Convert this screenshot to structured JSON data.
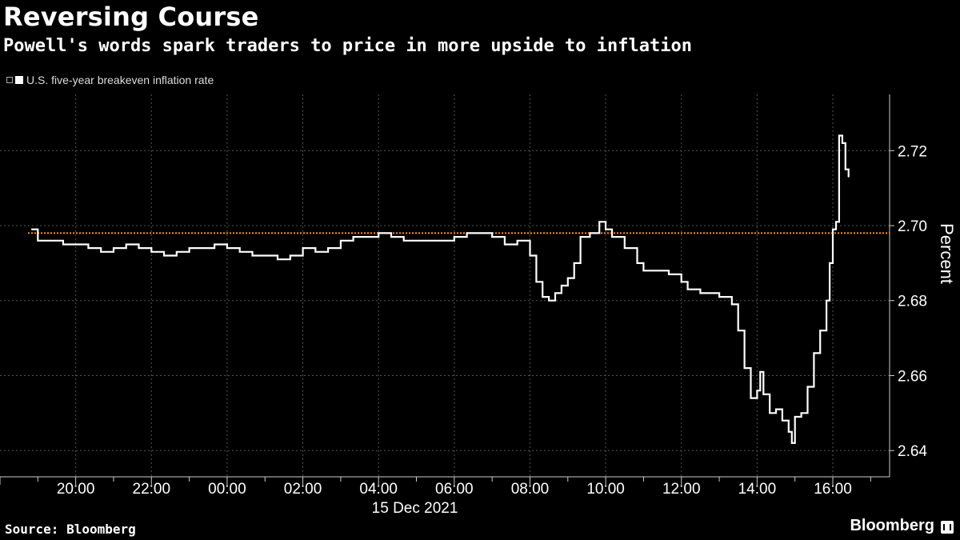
{
  "chart_data": {
    "type": "line",
    "title": "Reversing Course",
    "subtitle": "Powell's words spark traders to price in more upside to inflation",
    "series": [
      {
        "name": "U.S. five-year breakeven inflation rate",
        "color": "#ffffff",
        "points": [
          [
            "18:50",
            2.699
          ],
          [
            "19:00",
            2.696
          ],
          [
            "19:20",
            2.696
          ],
          [
            "19:40",
            2.695
          ],
          [
            "20:00",
            2.695
          ],
          [
            "20:20",
            2.694
          ],
          [
            "20:40",
            2.693
          ],
          [
            "21:00",
            2.694
          ],
          [
            "21:20",
            2.695
          ],
          [
            "21:40",
            2.694
          ],
          [
            "22:00",
            2.693
          ],
          [
            "22:20",
            2.692
          ],
          [
            "22:40",
            2.693
          ],
          [
            "23:00",
            2.694
          ],
          [
            "23:20",
            2.694
          ],
          [
            "23:40",
            2.695
          ],
          [
            "00:00",
            2.694
          ],
          [
            "00:20",
            2.693
          ],
          [
            "00:40",
            2.692
          ],
          [
            "01:00",
            2.692
          ],
          [
            "01:20",
            2.691
          ],
          [
            "01:40",
            2.692
          ],
          [
            "02:00",
            2.694
          ],
          [
            "02:20",
            2.693
          ],
          [
            "02:40",
            2.694
          ],
          [
            "03:00",
            2.696
          ],
          [
            "03:20",
            2.697
          ],
          [
            "03:40",
            2.697
          ],
          [
            "04:00",
            2.698
          ],
          [
            "04:20",
            2.697
          ],
          [
            "04:40",
            2.696
          ],
          [
            "05:00",
            2.696
          ],
          [
            "05:20",
            2.696
          ],
          [
            "05:40",
            2.696
          ],
          [
            "06:00",
            2.697
          ],
          [
            "06:20",
            2.698
          ],
          [
            "06:40",
            2.698
          ],
          [
            "07:00",
            2.697
          ],
          [
            "07:20",
            2.695
          ],
          [
            "07:40",
            2.696
          ],
          [
            "08:00",
            2.692
          ],
          [
            "08:10",
            2.685
          ],
          [
            "08:20",
            2.681
          ],
          [
            "08:30",
            2.68
          ],
          [
            "08:40",
            2.682
          ],
          [
            "08:50",
            2.684
          ],
          [
            "09:00",
            2.686
          ],
          [
            "09:10",
            2.69
          ],
          [
            "09:20",
            2.697
          ],
          [
            "09:35",
            2.698
          ],
          [
            "09:50",
            2.701
          ],
          [
            "10:00",
            2.699
          ],
          [
            "10:10",
            2.697
          ],
          [
            "10:30",
            2.694
          ],
          [
            "10:50",
            2.69
          ],
          [
            "11:00",
            2.688
          ],
          [
            "11:20",
            2.688
          ],
          [
            "11:40",
            2.687
          ],
          [
            "12:00",
            2.685
          ],
          [
            "12:10",
            2.683
          ],
          [
            "12:30",
            2.682
          ],
          [
            "13:00",
            2.681
          ],
          [
            "13:20",
            2.679
          ],
          [
            "13:30",
            2.672
          ],
          [
            "13:40",
            2.662
          ],
          [
            "13:50",
            2.654
          ],
          [
            "14:00",
            2.656
          ],
          [
            "14:05",
            2.661
          ],
          [
            "14:10",
            2.655
          ],
          [
            "14:20",
            2.65
          ],
          [
            "14:30",
            2.651
          ],
          [
            "14:40",
            2.648
          ],
          [
            "14:50",
            2.645
          ],
          [
            "14:55",
            2.642
          ],
          [
            "15:00",
            2.649
          ],
          [
            "15:10",
            2.65
          ],
          [
            "15:20",
            2.657
          ],
          [
            "15:30",
            2.666
          ],
          [
            "15:40",
            2.672
          ],
          [
            "15:50",
            2.68
          ],
          [
            "15:55",
            2.69
          ],
          [
            "16:00",
            2.699
          ],
          [
            "16:05",
            2.701
          ],
          [
            "16:10",
            2.724
          ],
          [
            "16:15",
            2.722
          ],
          [
            "16:20",
            2.715
          ],
          [
            "16:25",
            2.713
          ]
        ]
      }
    ],
    "reference_line": {
      "y": 2.698,
      "color": "#ff8c1a",
      "style": "dotted"
    },
    "x_ticks": [
      "20:00",
      "22:00",
      "00:00",
      "02:00",
      "04:00",
      "06:00",
      "08:00",
      "10:00",
      "12:00",
      "14:00",
      "16:00"
    ],
    "x_sublabel": "15 Dec 2021",
    "y_ticks": [
      2.64,
      2.66,
      2.68,
      2.7,
      2.72
    ],
    "ylabel": "Percent",
    "ylim": [
      2.633,
      2.735
    ],
    "x_range": [
      "18:00",
      "17:30"
    ],
    "grid": true,
    "legend_position": "top-left"
  },
  "source": "Source: Bloomberg",
  "brand": "Bloomberg"
}
